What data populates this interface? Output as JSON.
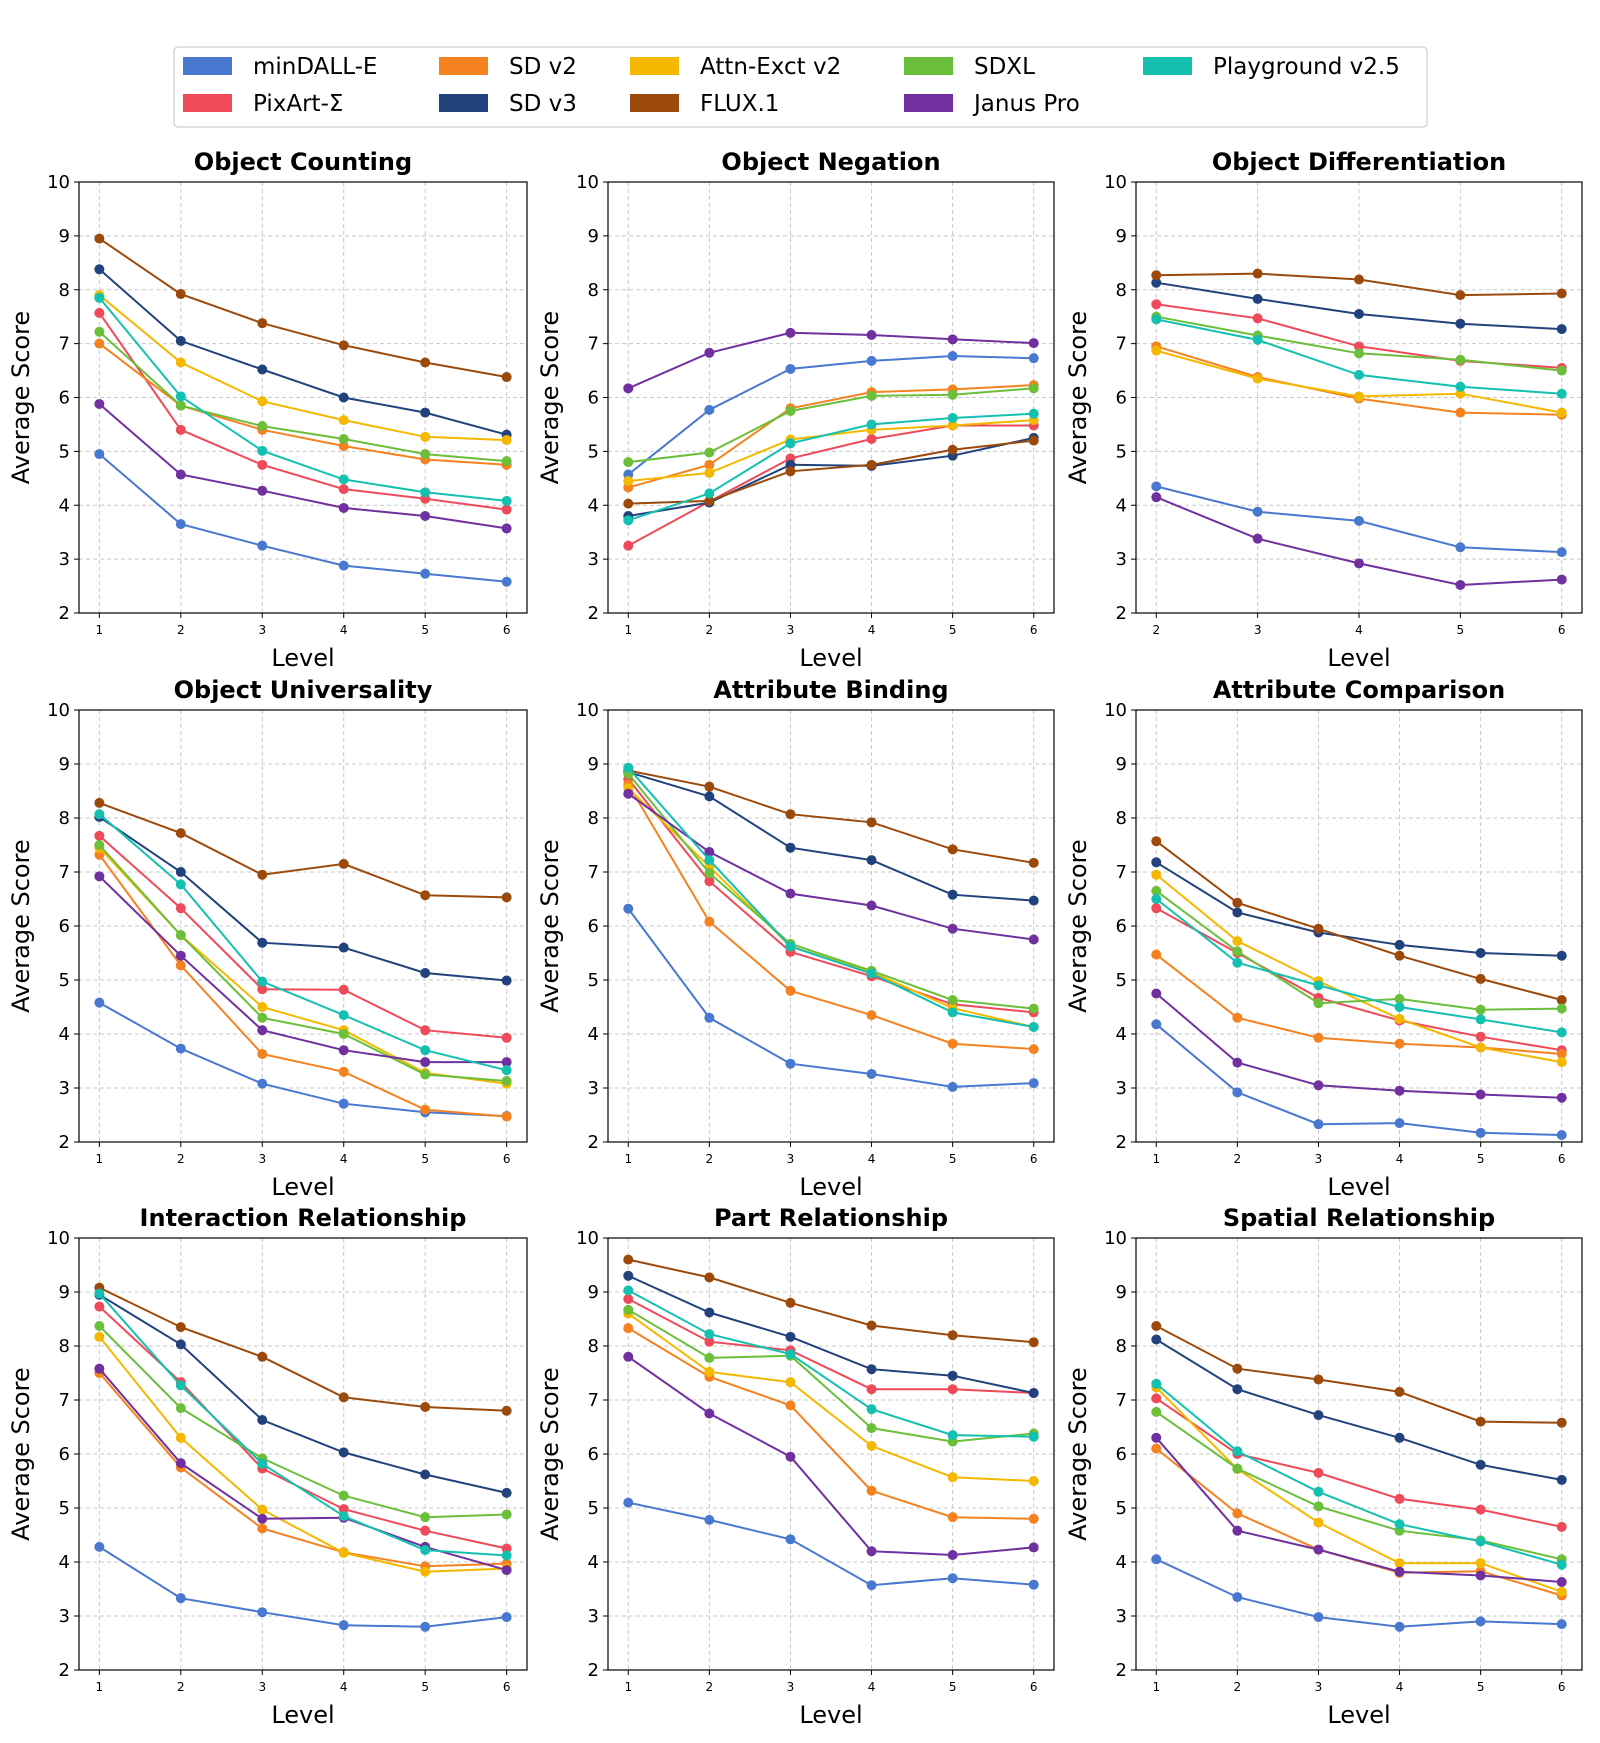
{
  "legend": [
    {
      "name": "minDALL-E",
      "color": "#4878d0"
    },
    {
      "name": "PixArt-Σ",
      "color": "#ee4a5a"
    },
    {
      "name": "SD v2",
      "color": "#f58220"
    },
    {
      "name": "SD v3",
      "color": "#22427e"
    },
    {
      "name": "Attn-Exct v2",
      "color": "#f5b800"
    },
    {
      "name": "FLUX.1",
      "color": "#9c4a0c"
    },
    {
      "name": "SDXL",
      "color": "#6bbf3a"
    },
    {
      "name": "Janus Pro",
      "color": "#7030a0"
    },
    {
      "name": "Playground v2.5",
      "color": "#14c0b0"
    }
  ],
  "chart_data": [
    {
      "type": "line",
      "title": "Object Counting",
      "xlabel": "Level",
      "ylabel": "Average Score",
      "ylim": [
        2,
        10
      ],
      "x": [
        1,
        2,
        3,
        4,
        5,
        6
      ],
      "series": [
        {
          "name": "minDALL-E",
          "values": [
            4.95,
            3.65,
            3.25,
            2.88,
            2.73,
            2.58
          ]
        },
        {
          "name": "PixArt-Σ",
          "values": [
            7.57,
            5.4,
            4.75,
            4.3,
            4.12,
            3.92
          ]
        },
        {
          "name": "SD v2",
          "values": [
            7.0,
            5.85,
            5.4,
            5.1,
            4.85,
            4.75
          ]
        },
        {
          "name": "SD v3",
          "values": [
            8.38,
            7.05,
            6.52,
            6.0,
            5.72,
            5.31
          ]
        },
        {
          "name": "Attn-Exct v2",
          "values": [
            7.9,
            6.65,
            5.93,
            5.58,
            5.27,
            5.21
          ]
        },
        {
          "name": "FLUX.1",
          "values": [
            8.95,
            7.92,
            7.38,
            6.97,
            6.65,
            6.38
          ]
        },
        {
          "name": "SDXL",
          "values": [
            7.22,
            5.85,
            5.47,
            5.23,
            4.95,
            4.82
          ]
        },
        {
          "name": "Janus Pro",
          "values": [
            5.88,
            4.57,
            4.27,
            3.95,
            3.8,
            3.57
          ]
        },
        {
          "name": "Playground v2.5",
          "values": [
            7.85,
            6.02,
            5.01,
            4.48,
            4.24,
            4.08
          ]
        }
      ]
    },
    {
      "type": "line",
      "title": "Object Negation",
      "xlabel": "Level",
      "ylabel": "Average Score",
      "ylim": [
        2,
        10
      ],
      "x": [
        1,
        2,
        3,
        4,
        5,
        6
      ],
      "series": [
        {
          "name": "minDALL-E",
          "values": [
            4.57,
            5.77,
            6.53,
            6.68,
            6.77,
            6.73
          ]
        },
        {
          "name": "PixArt-Σ",
          "values": [
            3.25,
            4.07,
            4.87,
            5.23,
            5.48,
            5.48
          ]
        },
        {
          "name": "SD v2",
          "values": [
            4.33,
            4.75,
            5.8,
            6.1,
            6.15,
            6.23
          ]
        },
        {
          "name": "SD v3",
          "values": [
            3.8,
            4.05,
            4.75,
            4.73,
            4.92,
            5.25
          ]
        },
        {
          "name": "Attn-Exct v2",
          "values": [
            4.45,
            4.6,
            5.22,
            5.4,
            5.48,
            5.58
          ]
        },
        {
          "name": "FLUX.1",
          "values": [
            4.03,
            4.08,
            4.63,
            4.75,
            5.03,
            5.2
          ]
        },
        {
          "name": "SDXL",
          "values": [
            4.8,
            4.98,
            5.75,
            6.03,
            6.05,
            6.17
          ]
        },
        {
          "name": "Janus Pro",
          "values": [
            6.17,
            6.83,
            7.2,
            7.16,
            7.08,
            7.01
          ]
        },
        {
          "name": "Playground v2.5",
          "values": [
            3.72,
            4.22,
            5.15,
            5.5,
            5.62,
            5.7
          ]
        }
      ]
    },
    {
      "type": "line",
      "title": "Object Differentiation",
      "xlabel": "Level",
      "ylabel": "Average Score",
      "ylim": [
        2,
        10
      ],
      "x": [
        2,
        3,
        4,
        5,
        6
      ],
      "series": [
        {
          "name": "minDALL-E",
          "values": [
            4.35,
            3.88,
            3.71,
            3.22,
            3.13
          ]
        },
        {
          "name": "PixArt-Σ",
          "values": [
            7.73,
            7.47,
            6.95,
            6.68,
            6.55
          ]
        },
        {
          "name": "SD v2",
          "values": [
            6.95,
            6.38,
            5.98,
            5.72,
            5.68
          ]
        },
        {
          "name": "SD v3",
          "values": [
            8.13,
            7.83,
            7.55,
            7.37,
            7.27
          ]
        },
        {
          "name": "Attn-Exct v2",
          "values": [
            6.87,
            6.35,
            6.02,
            6.07,
            5.72
          ]
        },
        {
          "name": "FLUX.1",
          "values": [
            8.27,
            8.3,
            8.19,
            7.9,
            7.93
          ]
        },
        {
          "name": "SDXL",
          "values": [
            7.5,
            7.15,
            6.82,
            6.7,
            6.5
          ]
        },
        {
          "name": "Janus Pro",
          "values": [
            4.15,
            3.38,
            2.92,
            2.52,
            2.62
          ]
        },
        {
          "name": "Playground v2.5",
          "values": [
            7.45,
            7.07,
            6.42,
            6.2,
            6.07
          ]
        }
      ]
    },
    {
      "type": "line",
      "title": "Object Universality",
      "xlabel": "Level",
      "ylabel": "Average Score",
      "ylim": [
        2,
        10
      ],
      "x": [
        1,
        2,
        3,
        4,
        5,
        6
      ],
      "series": [
        {
          "name": "minDALL-E",
          "values": [
            4.58,
            3.73,
            3.08,
            2.71,
            2.55,
            2.48
          ]
        },
        {
          "name": "PixArt-Σ",
          "values": [
            7.67,
            6.33,
            4.83,
            4.82,
            4.07,
            3.93
          ]
        },
        {
          "name": "SD v2",
          "values": [
            7.32,
            5.27,
            3.63,
            3.3,
            2.6,
            2.47
          ]
        },
        {
          "name": "SD v3",
          "values": [
            8.02,
            7.0,
            5.69,
            5.6,
            5.13,
            4.99
          ]
        },
        {
          "name": "Attn-Exct v2",
          "values": [
            7.45,
            5.83,
            4.5,
            4.07,
            3.28,
            3.08
          ]
        },
        {
          "name": "FLUX.1",
          "values": [
            8.28,
            7.72,
            6.95,
            7.15,
            6.57,
            6.53
          ]
        },
        {
          "name": "SDXL",
          "values": [
            7.5,
            5.83,
            4.3,
            4.0,
            3.25,
            3.13
          ]
        },
        {
          "name": "Janus Pro",
          "values": [
            6.92,
            5.45,
            4.07,
            3.7,
            3.48,
            3.48
          ]
        },
        {
          "name": "Playground v2.5",
          "values": [
            8.07,
            6.77,
            4.97,
            4.35,
            3.7,
            3.33
          ]
        }
      ]
    },
    {
      "type": "line",
      "title": "Attribute Binding",
      "xlabel": "Level",
      "ylabel": "Average Score",
      "ylim": [
        2,
        10
      ],
      "x": [
        1,
        2,
        3,
        4,
        5,
        6
      ],
      "series": [
        {
          "name": "minDALL-E",
          "values": [
            6.32,
            4.3,
            3.45,
            3.26,
            3.02,
            3.09
          ]
        },
        {
          "name": "PixArt-Σ",
          "values": [
            8.72,
            6.83,
            5.52,
            5.07,
            4.55,
            4.4
          ]
        },
        {
          "name": "SD v2",
          "values": [
            8.62,
            6.08,
            4.8,
            4.35,
            3.82,
            3.72
          ]
        },
        {
          "name": "SD v3",
          "values": [
            8.85,
            8.4,
            7.45,
            7.22,
            6.58,
            6.47
          ]
        },
        {
          "name": "Attn-Exct v2",
          "values": [
            8.55,
            7.1,
            5.62,
            5.15,
            4.48,
            4.13
          ]
        },
        {
          "name": "FLUX.1",
          "values": [
            8.88,
            8.58,
            8.07,
            7.92,
            7.42,
            7.17
          ]
        },
        {
          "name": "SDXL",
          "values": [
            8.82,
            6.98,
            5.67,
            5.17,
            4.63,
            4.47
          ]
        },
        {
          "name": "Janus Pro",
          "values": [
            8.45,
            7.37,
            6.6,
            6.38,
            5.95,
            5.75
          ]
        },
        {
          "name": "Playground v2.5",
          "values": [
            8.93,
            7.22,
            5.62,
            5.12,
            4.4,
            4.13
          ]
        }
      ]
    },
    {
      "type": "line",
      "title": "Attribute Comparison",
      "xlabel": "Level",
      "ylabel": "Average Score",
      "ylim": [
        2,
        10
      ],
      "x": [
        1,
        2,
        3,
        4,
        5,
        6
      ],
      "series": [
        {
          "name": "minDALL-E",
          "values": [
            4.18,
            2.92,
            2.33,
            2.35,
            2.17,
            2.13
          ]
        },
        {
          "name": "PixArt-Σ",
          "values": [
            6.33,
            5.5,
            4.67,
            4.25,
            3.95,
            3.7
          ]
        },
        {
          "name": "SD v2",
          "values": [
            5.47,
            4.3,
            3.93,
            3.82,
            3.75,
            3.63
          ]
        },
        {
          "name": "SD v3",
          "values": [
            7.18,
            6.25,
            5.88,
            5.65,
            5.5,
            5.45
          ]
        },
        {
          "name": "Attn-Exct v2",
          "values": [
            6.95,
            5.72,
            4.98,
            4.28,
            3.75,
            3.48
          ]
        },
        {
          "name": "FLUX.1",
          "values": [
            7.57,
            6.43,
            5.95,
            5.45,
            5.02,
            4.63
          ]
        },
        {
          "name": "SDXL",
          "values": [
            6.65,
            5.53,
            4.57,
            4.65,
            4.45,
            4.47
          ]
        },
        {
          "name": "Janus Pro",
          "values": [
            4.75,
            3.47,
            3.05,
            2.95,
            2.88,
            2.82
          ]
        },
        {
          "name": "Playground v2.5",
          "values": [
            6.5,
            5.32,
            4.9,
            4.5,
            4.27,
            4.03
          ]
        }
      ]
    },
    {
      "type": "line",
      "title": "Interaction Relationship",
      "xlabel": "Level",
      "ylabel": "Average Score",
      "ylim": [
        2,
        10
      ],
      "x": [
        1,
        2,
        3,
        4,
        5,
        6
      ],
      "series": [
        {
          "name": "minDALL-E",
          "values": [
            4.28,
            3.33,
            3.07,
            2.83,
            2.8,
            2.98
          ]
        },
        {
          "name": "PixArt-Σ",
          "values": [
            8.73,
            7.33,
            5.73,
            4.98,
            4.58,
            4.25
          ]
        },
        {
          "name": "SD v2",
          "values": [
            7.5,
            5.75,
            4.62,
            4.18,
            3.92,
            3.97
          ]
        },
        {
          "name": "SD v3",
          "values": [
            8.95,
            8.03,
            6.63,
            6.03,
            5.62,
            5.28
          ]
        },
        {
          "name": "Attn-Exct v2",
          "values": [
            8.17,
            6.3,
            4.97,
            4.17,
            3.82,
            3.88
          ]
        },
        {
          "name": "FLUX.1",
          "values": [
            9.08,
            8.35,
            7.8,
            7.05,
            6.87,
            6.8
          ]
        },
        {
          "name": "SDXL",
          "values": [
            8.37,
            6.85,
            5.92,
            5.23,
            4.83,
            4.88
          ]
        },
        {
          "name": "Janus Pro",
          "values": [
            7.58,
            5.83,
            4.8,
            4.82,
            4.28,
            3.85
          ]
        },
        {
          "name": "Playground v2.5",
          "values": [
            8.97,
            7.27,
            5.82,
            4.85,
            4.22,
            4.12
          ]
        }
      ]
    },
    {
      "type": "line",
      "title": "Part Relationship",
      "xlabel": "Level",
      "ylabel": "Average Score",
      "ylim": [
        2,
        10
      ],
      "x": [
        1,
        2,
        3,
        4,
        5,
        6
      ],
      "series": [
        {
          "name": "minDALL-E",
          "values": [
            5.1,
            4.78,
            4.42,
            3.57,
            3.7,
            3.58
          ]
        },
        {
          "name": "PixArt-Σ",
          "values": [
            8.87,
            8.08,
            7.92,
            7.2,
            7.2,
            7.13
          ]
        },
        {
          "name": "SD v2",
          "values": [
            8.33,
            7.43,
            6.9,
            5.32,
            4.83,
            4.8
          ]
        },
        {
          "name": "SD v3",
          "values": [
            9.3,
            8.62,
            8.17,
            7.57,
            7.45,
            7.13
          ]
        },
        {
          "name": "Attn-Exct v2",
          "values": [
            8.6,
            7.52,
            7.33,
            6.15,
            5.57,
            5.5
          ]
        },
        {
          "name": "FLUX.1",
          "values": [
            9.6,
            9.27,
            8.8,
            8.38,
            8.2,
            8.07
          ]
        },
        {
          "name": "SDXL",
          "values": [
            8.67,
            7.78,
            7.82,
            6.48,
            6.23,
            6.38
          ]
        },
        {
          "name": "Janus Pro",
          "values": [
            7.8,
            6.75,
            5.95,
            4.2,
            4.13,
            4.27
          ]
        },
        {
          "name": "Playground v2.5",
          "values": [
            9.03,
            8.22,
            7.85,
            6.83,
            6.35,
            6.32
          ]
        }
      ]
    },
    {
      "type": "line",
      "title": "Spatial Relationship",
      "xlabel": "Level",
      "ylabel": "Average Score",
      "ylim": [
        2,
        10
      ],
      "x": [
        1,
        2,
        3,
        4,
        5,
        6
      ],
      "series": [
        {
          "name": "minDALL-E",
          "values": [
            4.05,
            3.35,
            2.98,
            2.8,
            2.9,
            2.85
          ]
        },
        {
          "name": "PixArt-Σ",
          "values": [
            7.03,
            6.0,
            5.65,
            5.17,
            4.97,
            4.65
          ]
        },
        {
          "name": "SD v2",
          "values": [
            6.1,
            4.9,
            4.23,
            3.8,
            3.83,
            3.38
          ]
        },
        {
          "name": "SD v3",
          "values": [
            8.12,
            7.2,
            6.72,
            6.3,
            5.8,
            5.52
          ]
        },
        {
          "name": "Attn-Exct v2",
          "values": [
            7.23,
            5.72,
            4.73,
            3.98,
            3.98,
            3.45
          ]
        },
        {
          "name": "FLUX.1",
          "values": [
            8.37,
            7.58,
            7.38,
            7.15,
            6.6,
            6.58
          ]
        },
        {
          "name": "SDXL",
          "values": [
            6.78,
            5.73,
            5.03,
            4.58,
            4.4,
            4.05
          ]
        },
        {
          "name": "Janus Pro",
          "values": [
            6.3,
            4.58,
            4.23,
            3.82,
            3.75,
            3.63
          ]
        },
        {
          "name": "Playground v2.5",
          "values": [
            7.3,
            6.05,
            5.3,
            4.7,
            4.38,
            3.95
          ]
        }
      ]
    }
  ]
}
